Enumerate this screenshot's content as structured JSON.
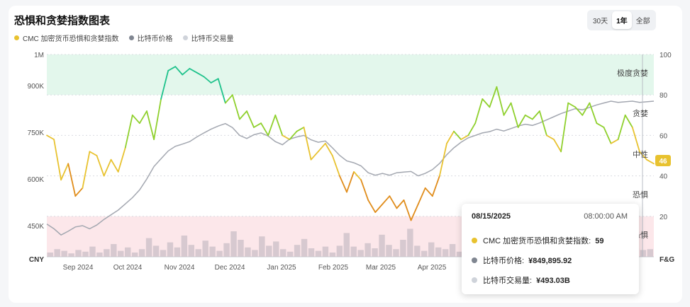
{
  "title": "恐惧和贪婪指数图表",
  "legend": [
    {
      "label": "CMC 加密货币恐惧和贪婪指数",
      "color": "#e8c22f"
    },
    {
      "label": "比特币价格",
      "color": "#808691"
    },
    {
      "label": "比特币交易量",
      "color": "#cfd3da"
    }
  ],
  "range_buttons": [
    {
      "label": "30天",
      "active": false
    },
    {
      "label": "1年",
      "active": true
    },
    {
      "label": "全部",
      "active": false
    }
  ],
  "chart_data": {
    "type": "line",
    "left_axis": {
      "label": "CNY",
      "ticks": [
        "1M",
        "900K",
        "750K",
        "600K",
        "450K"
      ],
      "tick_values": [
        1000000,
        900000,
        750000,
        600000,
        450000
      ],
      "range": [
        350000,
        1000000
      ]
    },
    "right_axis": {
      "label": "F&G",
      "ticks": [
        "100",
        "80",
        "60",
        "40",
        "20"
      ],
      "tick_values": [
        100,
        80,
        60,
        40,
        20
      ],
      "range": [
        0,
        100
      ]
    },
    "x_labels": [
      "Sep 2024",
      "Oct 2024",
      "Nov 2024",
      "Dec 2024",
      "Jan 2025",
      "Feb 2025",
      "Mar 2025",
      "Apr 2025"
    ],
    "zones": [
      {
        "label": "极度贪婪",
        "from": 80,
        "to": 100,
        "color": "#e3f7ec"
      },
      {
        "label": "贪婪",
        "from": 60,
        "to": 80
      },
      {
        "label": "中性",
        "from": 40,
        "to": 60
      },
      {
        "label": "恐惧",
        "from": 20,
        "to": 40
      },
      {
        "label": "极度恐惧",
        "from": 0,
        "to": 20,
        "color": "#fce7ea"
      }
    ],
    "fear_greed_current": "46",
    "fear_greed": [
      60,
      58,
      38,
      46,
      30,
      34,
      52,
      50,
      40,
      48,
      42,
      54,
      70,
      66,
      72,
      58,
      78,
      92,
      94,
      90,
      93,
      91,
      89,
      86,
      88,
      76,
      80,
      68,
      72,
      64,
      66,
      60,
      70,
      60,
      58,
      62,
      64,
      48,
      52,
      56,
      50,
      40,
      32,
      42,
      38,
      28,
      22,
      26,
      30,
      24,
      28,
      18,
      26,
      34,
      30,
      40,
      56,
      62,
      58,
      60,
      66,
      78,
      74,
      84,
      70,
      76,
      64,
      70,
      68,
      72,
      60,
      58,
      52,
      76,
      74,
      70,
      76,
      66,
      64,
      56,
      58,
      70,
      64,
      52,
      48,
      46
    ],
    "btc_price": [
      455000,
      440000,
      420000,
      432000,
      446000,
      450000,
      440000,
      452000,
      470000,
      485000,
      500000,
      520000,
      540000,
      565000,
      600000,
      640000,
      665000,
      690000,
      705000,
      712000,
      720000,
      735000,
      748000,
      760000,
      770000,
      778000,
      765000,
      740000,
      730000,
      742000,
      748000,
      738000,
      720000,
      710000,
      728000,
      735000,
      740000,
      726000,
      718000,
      722000,
      700000,
      676000,
      658000,
      652000,
      642000,
      620000,
      612000,
      618000,
      612000,
      620000,
      622000,
      624000,
      610000,
      618000,
      630000,
      650000,
      678000,
      700000,
      718000,
      732000,
      740000,
      748000,
      752000,
      760000,
      754000,
      762000,
      770000,
      776000,
      772000,
      780000,
      790000,
      800000,
      810000,
      818000,
      826000,
      822000,
      830000,
      838000,
      844000,
      850000,
      846000,
      848000,
      850000,
      846000,
      848000,
      850000
    ],
    "volume": [
      5,
      9,
      7,
      4,
      8,
      6,
      12,
      5,
      9,
      15,
      7,
      11,
      5,
      9,
      22,
      13,
      8,
      17,
      11,
      25,
      14,
      9,
      19,
      12,
      7,
      16,
      30,
      20,
      11,
      8,
      24,
      13,
      18,
      9,
      6,
      14,
      21,
      10,
      7,
      12,
      5,
      13,
      28,
      12,
      8,
      16,
      10,
      26,
      14,
      9,
      20,
      33,
      13,
      7,
      17,
      11,
      9,
      15,
      6,
      12,
      8,
      10,
      7,
      14,
      9,
      6,
      12,
      18,
      8,
      11,
      7,
      10,
      6,
      9,
      13,
      7,
      11,
      8,
      10,
      14,
      9,
      12,
      7,
      10,
      8,
      9
    ],
    "tooltip": {
      "date": "08/15/2025",
      "time": "08:00:00 AM",
      "rows": [
        {
          "label": "CMC 加密货币恐惧和贪婪指数: ",
          "value": "59",
          "color": "#e8c22f"
        },
        {
          "label": "比特币价格: ",
          "value": "¥849,895.92",
          "color": "#808691"
        },
        {
          "label": "比特币交易量: ",
          "value": "¥493.03B",
          "color": "#cfd3da"
        }
      ]
    }
  }
}
